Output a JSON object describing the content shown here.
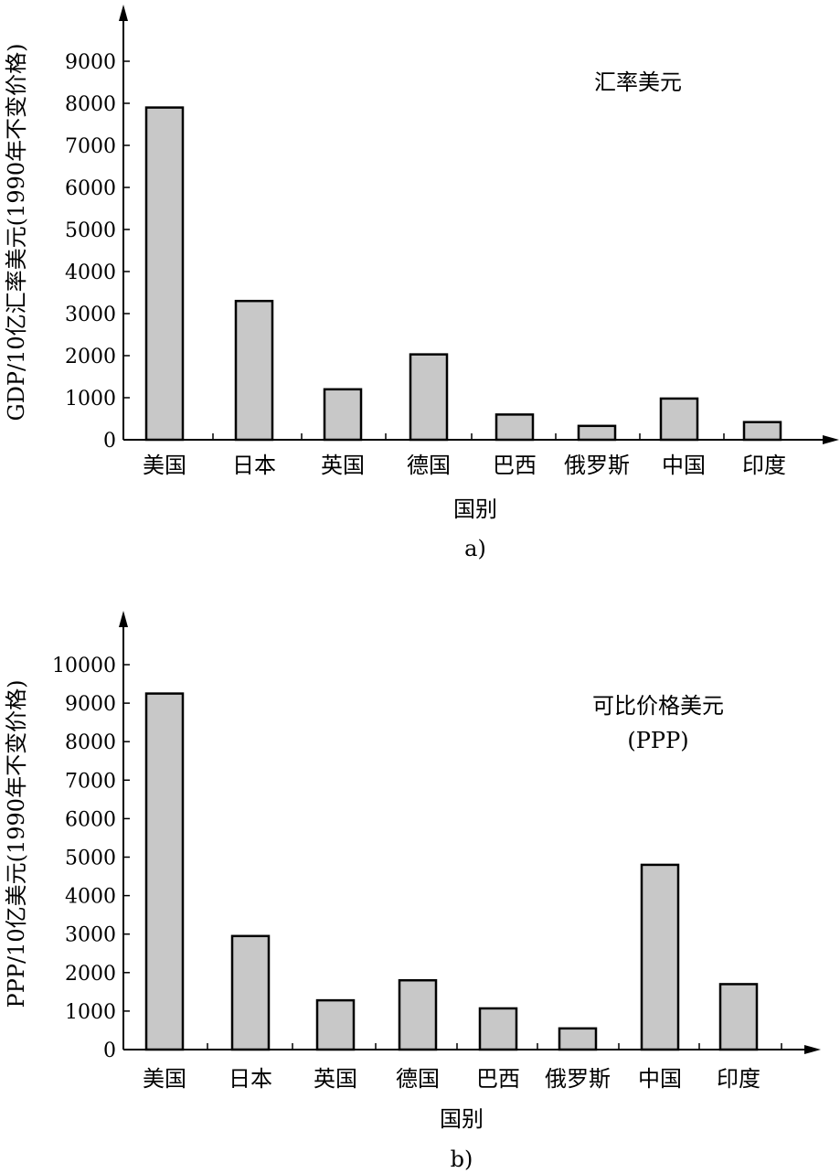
{
  "colors": {
    "bar_fill": "#c8c8c8",
    "bar_stroke": "#000000",
    "axis": "#000000"
  },
  "chart_data": [
    {
      "type": "bar",
      "subfigure_label": "a)",
      "annotation": [
        "汇率美元"
      ],
      "xlabel": "国别",
      "ylabel": "GDP/10亿汇率美元(1990年不变价格)",
      "categories": [
        "美国",
        "日本",
        "英国",
        "德国",
        "巴西",
        "俄罗斯",
        "中国",
        "印度"
      ],
      "values": [
        7900,
        3300,
        1200,
        2030,
        600,
        330,
        980,
        420
      ],
      "yticks": [
        "0",
        "1000",
        "2000",
        "3000",
        "4000",
        "5000",
        "6000",
        "7000",
        "8000",
        "9000"
      ],
      "ylim": [
        0,
        10000
      ],
      "grid": false
    },
    {
      "type": "bar",
      "subfigure_label": "b)",
      "annotation": [
        "可比价格美元",
        "(PPP)"
      ],
      "xlabel": "国别",
      "ylabel": "PPP/10亿美元(1990年不变价格)",
      "categories": [
        "美国",
        "日本",
        "英国",
        "德国",
        "巴西",
        "俄罗斯",
        "中国",
        "印度"
      ],
      "values": [
        9250,
        2950,
        1280,
        1800,
        1070,
        550,
        4800,
        1700
      ],
      "yticks": [
        "0",
        "1000",
        "2000",
        "3000",
        "4000",
        "5000",
        "6000",
        "7000",
        "8000",
        "9000",
        "10000"
      ],
      "ylim": [
        0,
        11000
      ],
      "grid": false
    }
  ]
}
